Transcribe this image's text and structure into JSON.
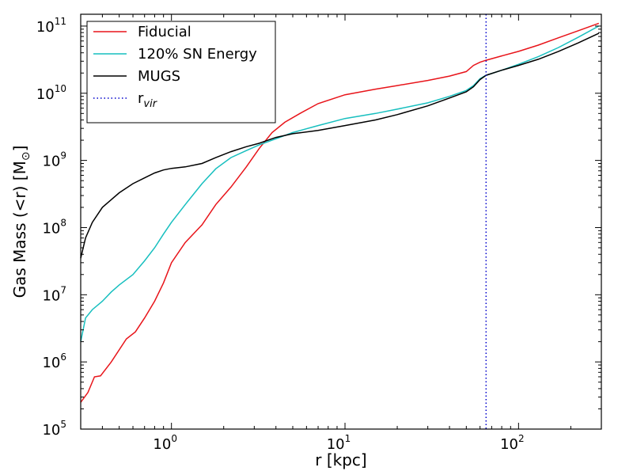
{
  "chart_data": {
    "type": "line",
    "xscale": "log",
    "yscale": "log",
    "xlabel": "r [kpc]",
    "ylabel": "Gas Mass (<r) [M",
    "ylabel_subscript": "⊙",
    "ylabel_close": "]",
    "xlim": [
      0.3,
      300
    ],
    "ylim": [
      100000,
      150000000000
    ],
    "x_ticks": [
      {
        "value": 1,
        "base": "10",
        "exp": "0"
      },
      {
        "value": 10,
        "base": "10",
        "exp": "1"
      },
      {
        "value": 100,
        "base": "10",
        "exp": "2"
      }
    ],
    "y_ticks": [
      {
        "value": 100000,
        "base": "10",
        "exp": "5"
      },
      {
        "value": 1000000,
        "base": "10",
        "exp": "6"
      },
      {
        "value": 10000000,
        "base": "10",
        "exp": "7"
      },
      {
        "value": 100000000,
        "base": "10",
        "exp": "8"
      },
      {
        "value": 1000000000,
        "base": "10",
        "exp": "9"
      },
      {
        "value": 10000000000,
        "base": "10",
        "exp": "10"
      },
      {
        "value": 100000000000,
        "base": "10",
        "exp": "11"
      }
    ],
    "legend_position": "top-left",
    "series": [
      {
        "name": "Fiducial",
        "color": "#e8141a",
        "points": [
          [
            0.3,
            250000
          ],
          [
            0.33,
            350000
          ],
          [
            0.36,
            600000
          ],
          [
            0.39,
            620000
          ],
          [
            0.45,
            1000000
          ],
          [
            0.55,
            2200000
          ],
          [
            0.62,
            2800000
          ],
          [
            0.7,
            4500000
          ],
          [
            0.8,
            8000000
          ],
          [
            0.9,
            15000000
          ],
          [
            1.0,
            30000000
          ],
          [
            1.2,
            60000000
          ],
          [
            1.5,
            110000000
          ],
          [
            1.8,
            220000000
          ],
          [
            2.2,
            400000000
          ],
          [
            2.7,
            800000000
          ],
          [
            3.2,
            1500000000
          ],
          [
            3.8,
            2600000000
          ],
          [
            4.5,
            3700000000
          ],
          [
            5.5,
            5000000000
          ],
          [
            7,
            7000000000
          ],
          [
            10,
            9500000000
          ],
          [
            15,
            11500000000
          ],
          [
            20,
            13000000000
          ],
          [
            30,
            15500000000
          ],
          [
            40,
            18000000000
          ],
          [
            50,
            21000000000
          ],
          [
            55,
            26000000000
          ],
          [
            60,
            29000000000
          ],
          [
            65,
            31000000000
          ],
          [
            80,
            36000000000
          ],
          [
            100,
            42000000000
          ],
          [
            130,
            52000000000
          ],
          [
            170,
            67000000000
          ],
          [
            220,
            85000000000
          ],
          [
            290,
            110000000000
          ]
        ]
      },
      {
        "name": "120% SN Energy",
        "color": "#17bfbf",
        "points": [
          [
            0.3,
            2000000
          ],
          [
            0.32,
            4500000
          ],
          [
            0.35,
            6000000
          ],
          [
            0.4,
            8000000
          ],
          [
            0.45,
            11000000
          ],
          [
            0.5,
            14000000
          ],
          [
            0.6,
            20000000
          ],
          [
            0.7,
            32000000
          ],
          [
            0.8,
            50000000
          ],
          [
            0.9,
            80000000
          ],
          [
            1.0,
            120000000
          ],
          [
            1.2,
            220000000
          ],
          [
            1.5,
            450000000
          ],
          [
            1.8,
            750000000
          ],
          [
            2.2,
            1100000000
          ],
          [
            2.7,
            1400000000
          ],
          [
            3.2,
            1700000000
          ],
          [
            4,
            2100000000
          ],
          [
            5,
            2600000000
          ],
          [
            7,
            3300000000
          ],
          [
            10,
            4200000000
          ],
          [
            15,
            5000000000
          ],
          [
            20,
            5800000000
          ],
          [
            30,
            7200000000
          ],
          [
            40,
            9000000000
          ],
          [
            50,
            11000000000
          ],
          [
            55,
            13000000000
          ],
          [
            60,
            16500000000
          ],
          [
            65,
            18500000000
          ],
          [
            80,
            22000000000
          ],
          [
            100,
            27000000000
          ],
          [
            130,
            35000000000
          ],
          [
            170,
            48000000000
          ],
          [
            220,
            68000000000
          ],
          [
            290,
            100000000000
          ]
        ]
      },
      {
        "name": "MUGS",
        "color": "#000000",
        "points": [
          [
            0.3,
            35000000
          ],
          [
            0.32,
            70000000
          ],
          [
            0.35,
            120000000
          ],
          [
            0.4,
            200000000
          ],
          [
            0.5,
            330000000
          ],
          [
            0.6,
            450000000
          ],
          [
            0.7,
            550000000
          ],
          [
            0.8,
            650000000
          ],
          [
            0.9,
            720000000
          ],
          [
            1.0,
            760000000
          ],
          [
            1.2,
            800000000
          ],
          [
            1.5,
            900000000
          ],
          [
            1.8,
            1100000000
          ],
          [
            2.2,
            1350000000
          ],
          [
            2.7,
            1600000000
          ],
          [
            3.2,
            1800000000
          ],
          [
            4,
            2200000000
          ],
          [
            5,
            2500000000
          ],
          [
            7,
            2800000000
          ],
          [
            10,
            3300000000
          ],
          [
            15,
            4000000000
          ],
          [
            20,
            4800000000
          ],
          [
            30,
            6500000000
          ],
          [
            40,
            8500000000
          ],
          [
            50,
            10500000000
          ],
          [
            55,
            12500000000
          ],
          [
            60,
            16000000000
          ],
          [
            65,
            18500000000
          ],
          [
            80,
            22000000000
          ],
          [
            100,
            26000000000
          ],
          [
            130,
            32000000000
          ],
          [
            170,
            42000000000
          ],
          [
            220,
            56000000000
          ],
          [
            290,
            78000000000
          ]
        ]
      }
    ],
    "vline": {
      "name": "r",
      "name_subscript": "vir",
      "x": 65,
      "color": "#0000cc",
      "style": "dotted"
    }
  }
}
